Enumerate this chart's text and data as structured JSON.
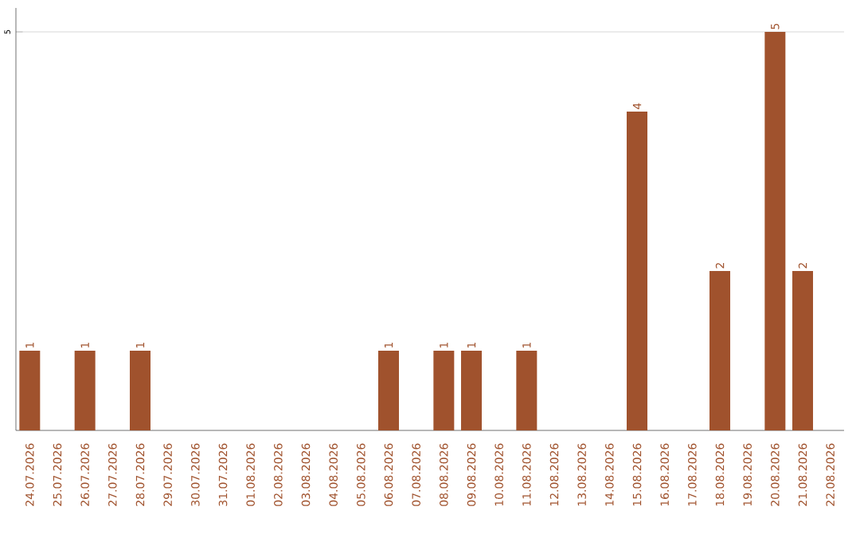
{
  "chart_data": {
    "type": "bar",
    "categories": [
      "24.07.2026",
      "25.07.2026",
      "26.07.2026",
      "27.07.2026",
      "28.07.2026",
      "29.07.2026",
      "30.07.2026",
      "31.07.2026",
      "01.08.2026",
      "02.08.2026",
      "03.08.2026",
      "04.08.2026",
      "05.08.2026",
      "06.08.2026",
      "07.08.2026",
      "08.08.2026",
      "09.08.2026",
      "10.08.2026",
      "11.08.2026",
      "12.08.2026",
      "13.08.2026",
      "14.08.2026",
      "15.08.2026",
      "16.08.2026",
      "17.08.2026",
      "18.08.2026",
      "19.08.2026",
      "20.08.2026",
      "21.08.2026",
      "22.08.2026"
    ],
    "values": [
      1,
      0,
      1,
      0,
      1,
      0,
      0,
      0,
      0,
      0,
      0,
      0,
      0,
      1,
      0,
      1,
      1,
      0,
      1,
      0,
      0,
      0,
      4,
      0,
      0,
      2,
      0,
      5,
      2,
      0
    ],
    "value_labels": [
      "1",
      null,
      "1",
      null,
      "1",
      null,
      null,
      null,
      null,
      null,
      null,
      null,
      null,
      "1",
      null,
      "1",
      "1",
      null,
      "1",
      null,
      null,
      null,
      "4",
      null,
      null,
      "2",
      null,
      "5",
      "2",
      null
    ],
    "color": "#a0522d",
    "ylim": [
      0,
      5.3
    ],
    "yticks": [
      5
    ],
    "grid": "y"
  }
}
